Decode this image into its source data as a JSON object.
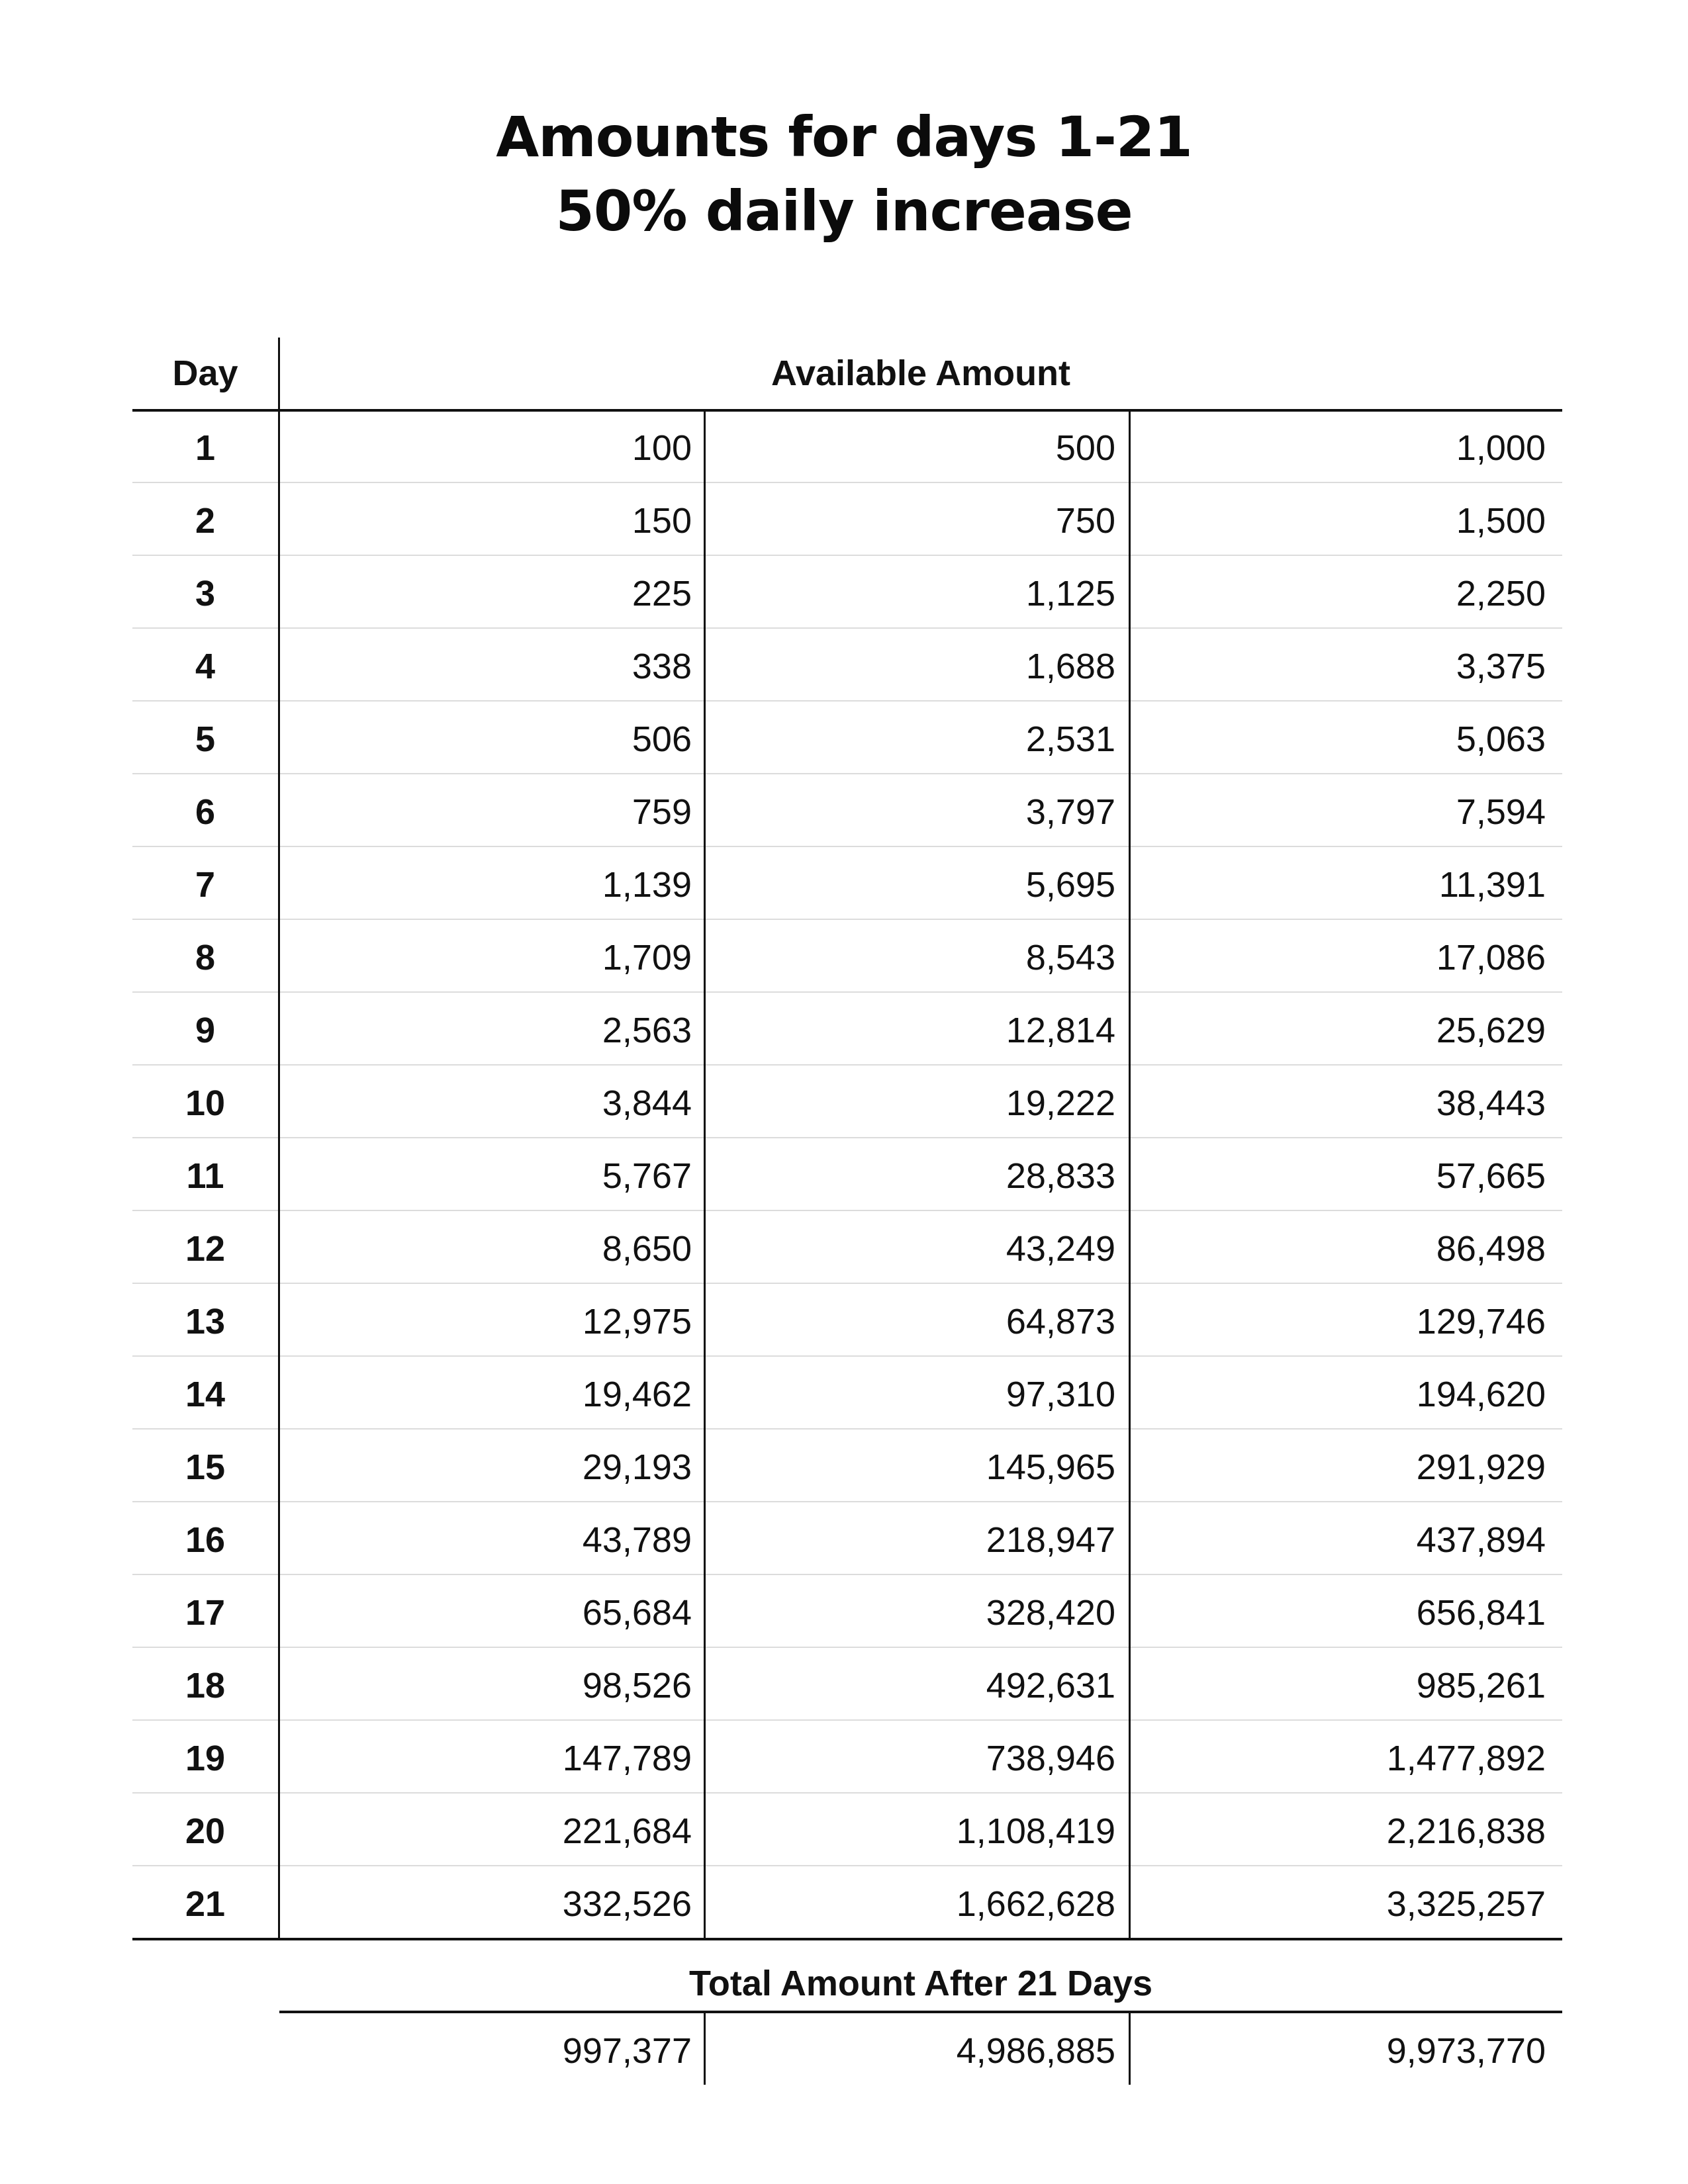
{
  "title": {
    "line1": "Amounts for days 1-21",
    "line2": "50% daily increase"
  },
  "table": {
    "day_header": "Day",
    "amount_header": "Available Amount",
    "total_header": "Total Amount After 21 Days",
    "rows": [
      {
        "day": "1",
        "a": "100",
        "b": "500",
        "c": "1,000"
      },
      {
        "day": "2",
        "a": "150",
        "b": "750",
        "c": "1,500"
      },
      {
        "day": "3",
        "a": "225",
        "b": "1,125",
        "c": "2,250"
      },
      {
        "day": "4",
        "a": "338",
        "b": "1,688",
        "c": "3,375"
      },
      {
        "day": "5",
        "a": "506",
        "b": "2,531",
        "c": "5,063"
      },
      {
        "day": "6",
        "a": "759",
        "b": "3,797",
        "c": "7,594"
      },
      {
        "day": "7",
        "a": "1,139",
        "b": "5,695",
        "c": "11,391"
      },
      {
        "day": "8",
        "a": "1,709",
        "b": "8,543",
        "c": "17,086"
      },
      {
        "day": "9",
        "a": "2,563",
        "b": "12,814",
        "c": "25,629"
      },
      {
        "day": "10",
        "a": "3,844",
        "b": "19,222",
        "c": "38,443"
      },
      {
        "day": "11",
        "a": "5,767",
        "b": "28,833",
        "c": "57,665"
      },
      {
        "day": "12",
        "a": "8,650",
        "b": "43,249",
        "c": "86,498"
      },
      {
        "day": "13",
        "a": "12,975",
        "b": "64,873",
        "c": "129,746"
      },
      {
        "day": "14",
        "a": "19,462",
        "b": "97,310",
        "c": "194,620"
      },
      {
        "day": "15",
        "a": "29,193",
        "b": "145,965",
        "c": "291,929"
      },
      {
        "day": "16",
        "a": "43,789",
        "b": "218,947",
        "c": "437,894"
      },
      {
        "day": "17",
        "a": "65,684",
        "b": "328,420",
        "c": "656,841"
      },
      {
        "day": "18",
        "a": "98,526",
        "b": "492,631",
        "c": "985,261"
      },
      {
        "day": "19",
        "a": "147,789",
        "b": "738,946",
        "c": "1,477,892"
      },
      {
        "day": "20",
        "a": "221,684",
        "b": "1,108,419",
        "c": "2,216,838"
      },
      {
        "day": "21",
        "a": "332,526",
        "b": "1,662,628",
        "c": "3,325,257"
      }
    ],
    "totals": {
      "a": "997,377",
      "b": "4,986,885",
      "c": "9,973,770"
    }
  }
}
